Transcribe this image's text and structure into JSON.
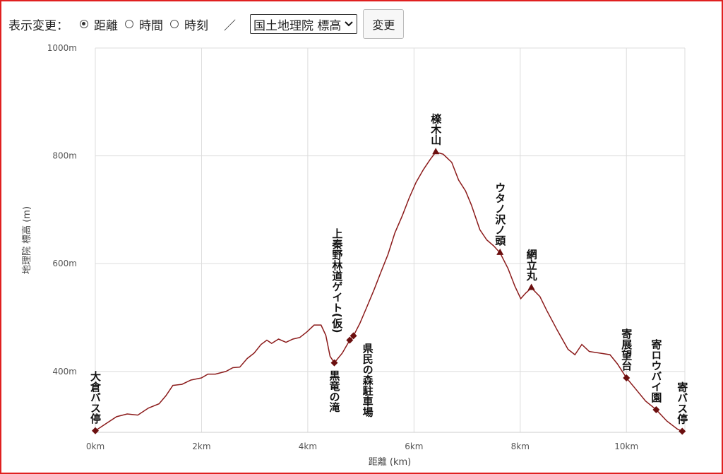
{
  "controls": {
    "label": "表示変更：",
    "options": [
      "距離",
      "時間",
      "時刻"
    ],
    "selected": 0,
    "separator": "／",
    "select": "国土地理院 標高",
    "button": "変更"
  },
  "chart_data": {
    "type": "line",
    "xlabel": "距離 (km)",
    "ylabel": "地理院 標高 (m)",
    "x": [
      0,
      0.2,
      0.4,
      0.6,
      0.8,
      1.0,
      1.2,
      1.33,
      1.46,
      1.63,
      1.8,
      2.0,
      2.12,
      2.26,
      2.46,
      2.59,
      2.72,
      2.86,
      2.99,
      3.12,
      3.23,
      3.32,
      3.45,
      3.59,
      3.72,
      3.85,
      3.98,
      4.12,
      4.25,
      4.34,
      4.42,
      4.5,
      4.65,
      4.79,
      4.86,
      4.98,
      5.11,
      5.25,
      5.38,
      5.51,
      5.64,
      5.78,
      5.91,
      6.04,
      6.18,
      6.31,
      6.41,
      6.55,
      6.71,
      6.84,
      6.97,
      7.08,
      7.24,
      7.37,
      7.5,
      7.62,
      7.77,
      7.9,
      8.01,
      8.1,
      8.21,
      8.37,
      8.5,
      8.7,
      8.9,
      9.03,
      9.16,
      9.3,
      9.5,
      9.69,
      9.83,
      10.0,
      10.16,
      10.36,
      10.56,
      10.76,
      10.96,
      11.05
    ],
    "series": [
      {
        "name": "地理院 標高",
        "color": "#8b1a1a",
        "values": [
          290,
          303,
          316,
          321,
          319,
          332,
          340,
          355,
          374,
          376,
          384,
          388,
          395,
          395,
          400,
          407,
          408,
          424,
          434,
          450,
          458,
          452,
          460,
          454,
          460,
          463,
          473,
          486,
          486,
          467,
          428,
          416,
          434,
          458,
          466,
          489,
          519,
          552,
          585,
          617,
          657,
          689,
          722,
          751,
          775,
          794,
          807,
          803,
          788,
          755,
          735,
          709,
          663,
          644,
          633,
          620,
          591,
          558,
          535,
          545,
          555,
          539,
          513,
          476,
          441,
          431,
          450,
          437,
          434,
          431,
          414,
          388,
          369,
          345,
          329,
          308,
          293,
          289
        ]
      }
    ],
    "waypoints": [
      {
        "name": "大倉バス停",
        "x": 0,
        "y": 290,
        "shape": "diamond"
      },
      {
        "name": "黒竜の滝",
        "x": 4.5,
        "y": 416,
        "shape": "diamond"
      },
      {
        "name": "上秦野林道ゲイト(仮)",
        "x": 4.79,
        "y": 458,
        "shape": "diamond"
      },
      {
        "name": "県民の森駐車場",
        "x": 4.86,
        "y": 466,
        "shape": "diamond"
      },
      {
        "name": "檪木山",
        "x": 6.41,
        "y": 807,
        "shape": "triangle"
      },
      {
        "name": "ウタノ沢ノ頭",
        "x": 7.62,
        "y": 620,
        "shape": "triangle"
      },
      {
        "name": "網立丸",
        "x": 8.21,
        "y": 555,
        "shape": "triangle"
      },
      {
        "name": "寄展望台",
        "x": 10.0,
        "y": 388,
        "shape": "diamond"
      },
      {
        "name": "寄ロウバイ園",
        "x": 10.56,
        "y": 329,
        "shape": "diamond"
      },
      {
        "name": "寄バス停",
        "x": 11.05,
        "y": 289,
        "shape": "diamond"
      }
    ],
    "marker_color": "#6b0f0f",
    "xlim": [
      0,
      11.1
    ],
    "ylim": [
      287,
      1000
    ],
    "xticks": [
      {
        "value": 0,
        "label": "0km"
      },
      {
        "value": 2,
        "label": "2km"
      },
      {
        "value": 4,
        "label": "4km"
      },
      {
        "value": 6,
        "label": "6km"
      },
      {
        "value": 8,
        "label": "8km"
      },
      {
        "value": 10,
        "label": "10km"
      }
    ],
    "yticks": [
      {
        "value": 400,
        "label": "400m"
      },
      {
        "value": 600,
        "label": "600m"
      },
      {
        "value": 800,
        "label": "800m"
      },
      {
        "value": 1000,
        "label": "1000m"
      }
    ],
    "grid": true
  }
}
